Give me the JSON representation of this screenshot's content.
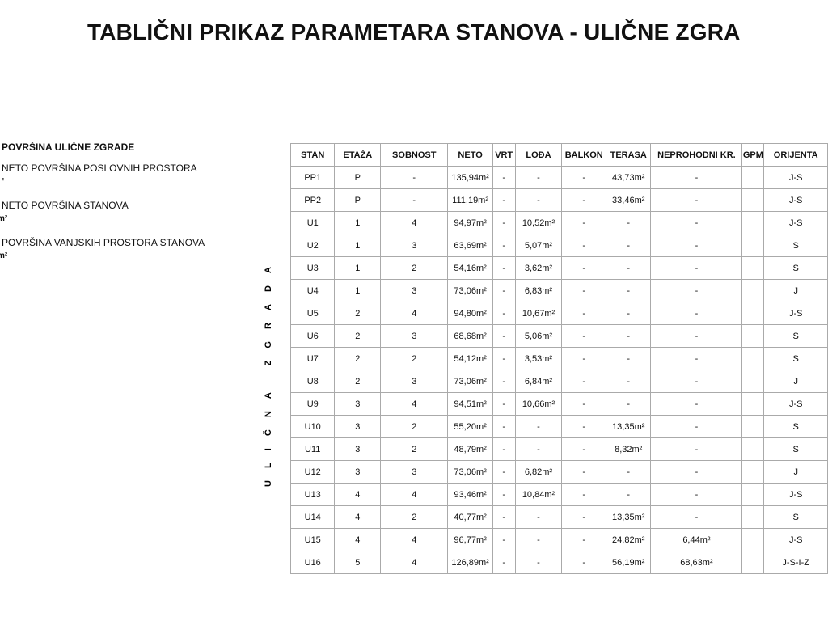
{
  "title": "TABLIČNI PRIKAZ PARAMETARA STANOVA - ULIČNE ZGRA",
  "notes": [
    "POVRŠINA ULIČNE ZGRADE",
    "NETO POVRŠINA POSLOVNIH PROSTORA",
    "²",
    "NETO POVRŠINA STANOVA",
    "m²",
    "POVRŠINA VANJSKIH PROSTORA STANOVA",
    "m²"
  ],
  "side_label": "ULIČNA ZGRADA",
  "table": {
    "headers": [
      "STAN",
      "ETAŽA",
      "SOBNOST",
      "NETO",
      "VRT",
      "LOĐA",
      "BALKON",
      "TERASA",
      "NEPROHODNI KR.",
      "GPM",
      "ORIJENTA"
    ],
    "rows": [
      [
        "PP1",
        "P",
        "-",
        "135,94m²",
        "-",
        "-",
        "-",
        "43,73m²",
        "-",
        null,
        "J-S"
      ],
      [
        "PP2",
        "P",
        "-",
        "111,19m²",
        "-",
        "-",
        "-",
        "33,46m²",
        "-",
        null,
        "J-S"
      ],
      [
        "U1",
        "1",
        "4",
        "94,97m²",
        "-",
        "10,52m²",
        "-",
        "-",
        "-",
        null,
        "J-S"
      ],
      [
        "U2",
        "1",
        "3",
        "63,69m²",
        "-",
        "5,07m²",
        "-",
        "-",
        "-",
        null,
        "S"
      ],
      [
        "U3",
        "1",
        "2",
        "54,16m²",
        "-",
        "3,62m²",
        "-",
        "-",
        "-",
        null,
        "S"
      ],
      [
        "U4",
        "1",
        "3",
        "73,06m²",
        "-",
        "6,83m²",
        "-",
        "-",
        "-",
        null,
        "J"
      ],
      [
        "U5",
        "2",
        "4",
        "94,80m²",
        "-",
        "10,67m²",
        "-",
        "-",
        "-",
        null,
        "J-S"
      ],
      [
        "U6",
        "2",
        "3",
        "68,68m²",
        "-",
        "5,06m²",
        "-",
        "-",
        "-",
        null,
        "S"
      ],
      [
        "U7",
        "2",
        "2",
        "54,12m²",
        "-",
        "3,53m²",
        "-",
        "-",
        "-",
        null,
        "S"
      ],
      [
        "U8",
        "2",
        "3",
        "73,06m²",
        "-",
        "6,84m²",
        "-",
        "-",
        "-",
        null,
        "J"
      ],
      [
        "U9",
        "3",
        "4",
        "94,51m²",
        "-",
        "10,66m²",
        "-",
        "-",
        "-",
        null,
        "J-S"
      ],
      [
        "U10",
        "3",
        "2",
        "55,20m²",
        "-",
        "-",
        "-",
        "13,35m²",
        "-",
        null,
        "S"
      ],
      [
        "U11",
        "3",
        "2",
        "48,79m²",
        "-",
        "-",
        "-",
        "8,32m²",
        "-",
        null,
        "S"
      ],
      [
        "U12",
        "3",
        "3",
        "73,06m²",
        "-",
        "6,82m²",
        "-",
        "-",
        "-",
        null,
        "J"
      ],
      [
        "U13",
        "4",
        "4",
        "93,46m²",
        "-",
        "10,84m²",
        "-",
        "-",
        "-",
        null,
        "J-S"
      ],
      [
        "U14",
        "4",
        "2",
        "40,77m²",
        "-",
        "-",
        "-",
        "13,35m²",
        "-",
        null,
        "S"
      ],
      [
        "U15",
        "4",
        "4",
        "96,77m²",
        "-",
        "-",
        "-",
        "24,82m²",
        "6,44m²",
        null,
        "J-S"
      ],
      [
        "U16",
        "5",
        "4",
        "126,89m²",
        "-",
        "-",
        "-",
        "56,19m²",
        "68,63m²",
        null,
        "J-S-I-Z"
      ]
    ]
  }
}
